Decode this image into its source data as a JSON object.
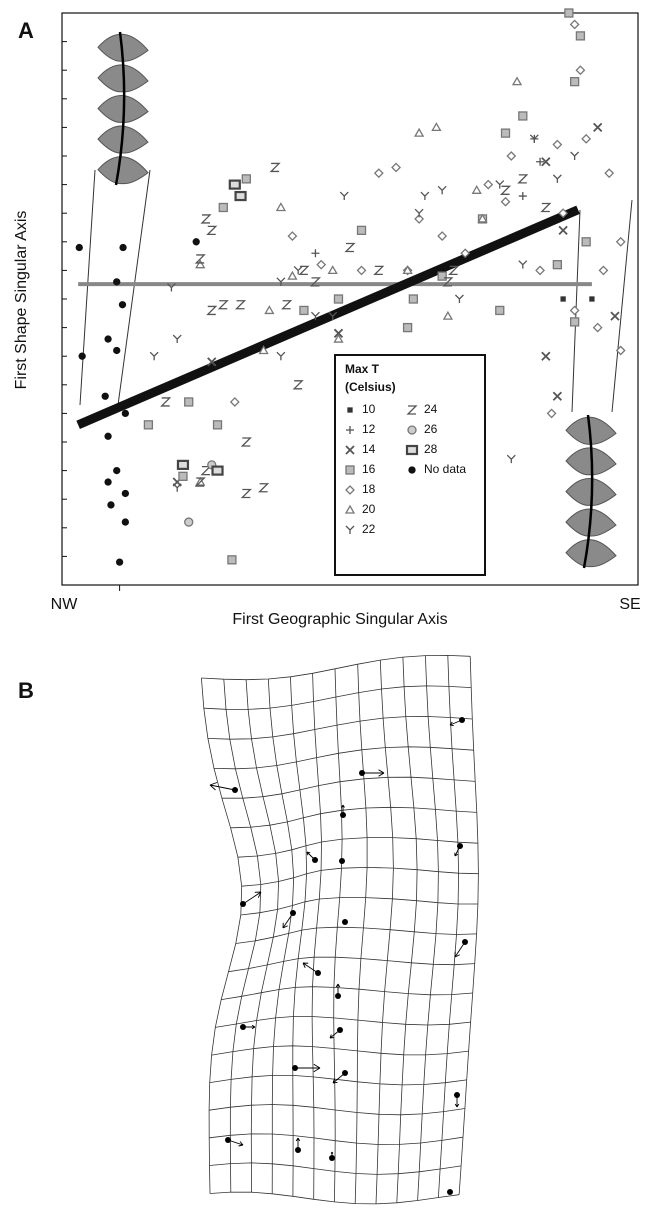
{
  "chart_data": {
    "type": "scatter",
    "panel_labels": [
      "A",
      "B"
    ],
    "xlabel": "First Geographic Singular Axis",
    "ylabel": "First Shape Singular Axis",
    "x_end_labels": [
      "NW",
      "SE"
    ],
    "xlim": [
      0,
      100
    ],
    "ylim": [
      0,
      100
    ],
    "xticks": [
      10
    ],
    "yticks": [
      5,
      10,
      15,
      20,
      25,
      30,
      35,
      40,
      45,
      50,
      55,
      60,
      65,
      70,
      75,
      80,
      85,
      90,
      95
    ],
    "fit_line": {
      "x": [
        2.8,
        89.6
      ],
      "y": [
        28,
        65.6
      ],
      "color": "#111111"
    },
    "reference_line": {
      "x": [
        2.8,
        92
      ],
      "y": [
        52.6,
        52.6
      ],
      "color": "#888888"
    },
    "legend_title": [
      "Max T",
      "(Celsius)"
    ],
    "series": [
      {
        "name": "10",
        "marker": "dot-square",
        "color": "#333333",
        "x": [
          87,
          92
        ],
        "y": [
          50,
          50
        ]
      },
      {
        "name": "12",
        "marker": "plus",
        "color": "#555555",
        "x": [
          44,
          82,
          83,
          80
        ],
        "y": [
          58,
          78,
          74,
          68
        ]
      },
      {
        "name": "14",
        "marker": "x",
        "color": "#555555",
        "x": [
          48,
          84,
          93,
          87,
          84,
          86,
          96,
          26,
          20
        ],
        "y": [
          44,
          74,
          80,
          62,
          40,
          33,
          47,
          39,
          18
        ]
      },
      {
        "name": "16",
        "marker": "square",
        "color": "#777777",
        "x": [
          32,
          28,
          22,
          27,
          21,
          15,
          88,
          90,
          89,
          77,
          80,
          73,
          66,
          61,
          60,
          52,
          48,
          42,
          89,
          76,
          91,
          86,
          29.5
        ],
        "y": [
          71,
          66,
          32,
          28,
          19,
          28,
          100,
          96,
          88,
          79,
          82,
          64,
          54,
          50,
          45,
          62,
          50,
          48,
          46,
          48,
          60,
          56,
          4.4
        ]
      },
      {
        "name": "18",
        "marker": "diamond",
        "color": "#777777",
        "x": [
          55,
          58,
          66,
          74,
          77,
          78,
          86,
          89,
          90,
          87,
          94,
          91,
          95,
          97,
          93,
          89,
          83,
          70,
          62,
          60,
          52,
          85,
          97,
          40,
          45,
          30
        ],
        "y": [
          72,
          73,
          61,
          70,
          67,
          75,
          77,
          98,
          90,
          65,
          55,
          78,
          72,
          60,
          45,
          48,
          55,
          58,
          64,
          55,
          55,
          30,
          41,
          61,
          56,
          32
        ]
      },
      {
        "name": "20",
        "marker": "triangle",
        "color": "#777777",
        "x": [
          24,
          38,
          36,
          60,
          62,
          65,
          47,
          48,
          67,
          73,
          79,
          72,
          24,
          40,
          35
        ],
        "y": [
          56,
          66,
          48,
          55,
          79,
          80,
          55,
          43,
          47,
          64,
          88,
          69,
          18,
          54,
          41
        ]
      },
      {
        "name": "22",
        "marker": "Y",
        "color": "#555555",
        "x": [
          20,
          41,
          38,
          47,
          49,
          63,
          66,
          82,
          86,
          89,
          76,
          80,
          69,
          20,
          16,
          38,
          44,
          62,
          78,
          19
        ],
        "y": [
          17,
          55,
          53,
          47,
          68,
          68,
          69,
          78,
          71,
          75,
          70,
          56,
          50,
          43,
          40,
          40,
          47,
          65,
          22,
          52
        ]
      },
      {
        "name": "24",
        "marker": "Z",
        "color": "#555555",
        "x": [
          37,
          26,
          25,
          24,
          26,
          28,
          31,
          32,
          35,
          32,
          39,
          42,
          44,
          50,
          55,
          67,
          68,
          77,
          80,
          84,
          24,
          25,
          41,
          18
        ],
        "y": [
          73,
          62,
          64,
          57,
          48,
          49,
          49,
          25,
          17,
          16,
          49,
          55,
          53,
          59,
          55,
          53,
          55,
          69,
          71,
          66,
          18,
          20,
          35,
          32
        ]
      },
      {
        "name": "26",
        "marker": "circle",
        "color": "#777777",
        "x": [
          26,
          22
        ],
        "y": [
          21,
          11
        ]
      },
      {
        "name": "28",
        "marker": "square-bold",
        "color": "#444444",
        "x": [
          31,
          30,
          21,
          27
        ],
        "y": [
          68,
          70,
          21,
          20
        ]
      },
      {
        "name": "No data",
        "marker": "dot",
        "color": "#111111",
        "x": [
          3,
          10.6,
          9.5,
          10.5,
          8,
          9.5,
          3.5,
          7.5,
          11,
          8,
          9.5,
          8,
          11,
          8.5,
          11,
          10,
          23.3
        ],
        "y": [
          59,
          59,
          53,
          49,
          43,
          41,
          40,
          33,
          30,
          26,
          20,
          18,
          16,
          14,
          11,
          4,
          60
        ]
      }
    ]
  }
}
